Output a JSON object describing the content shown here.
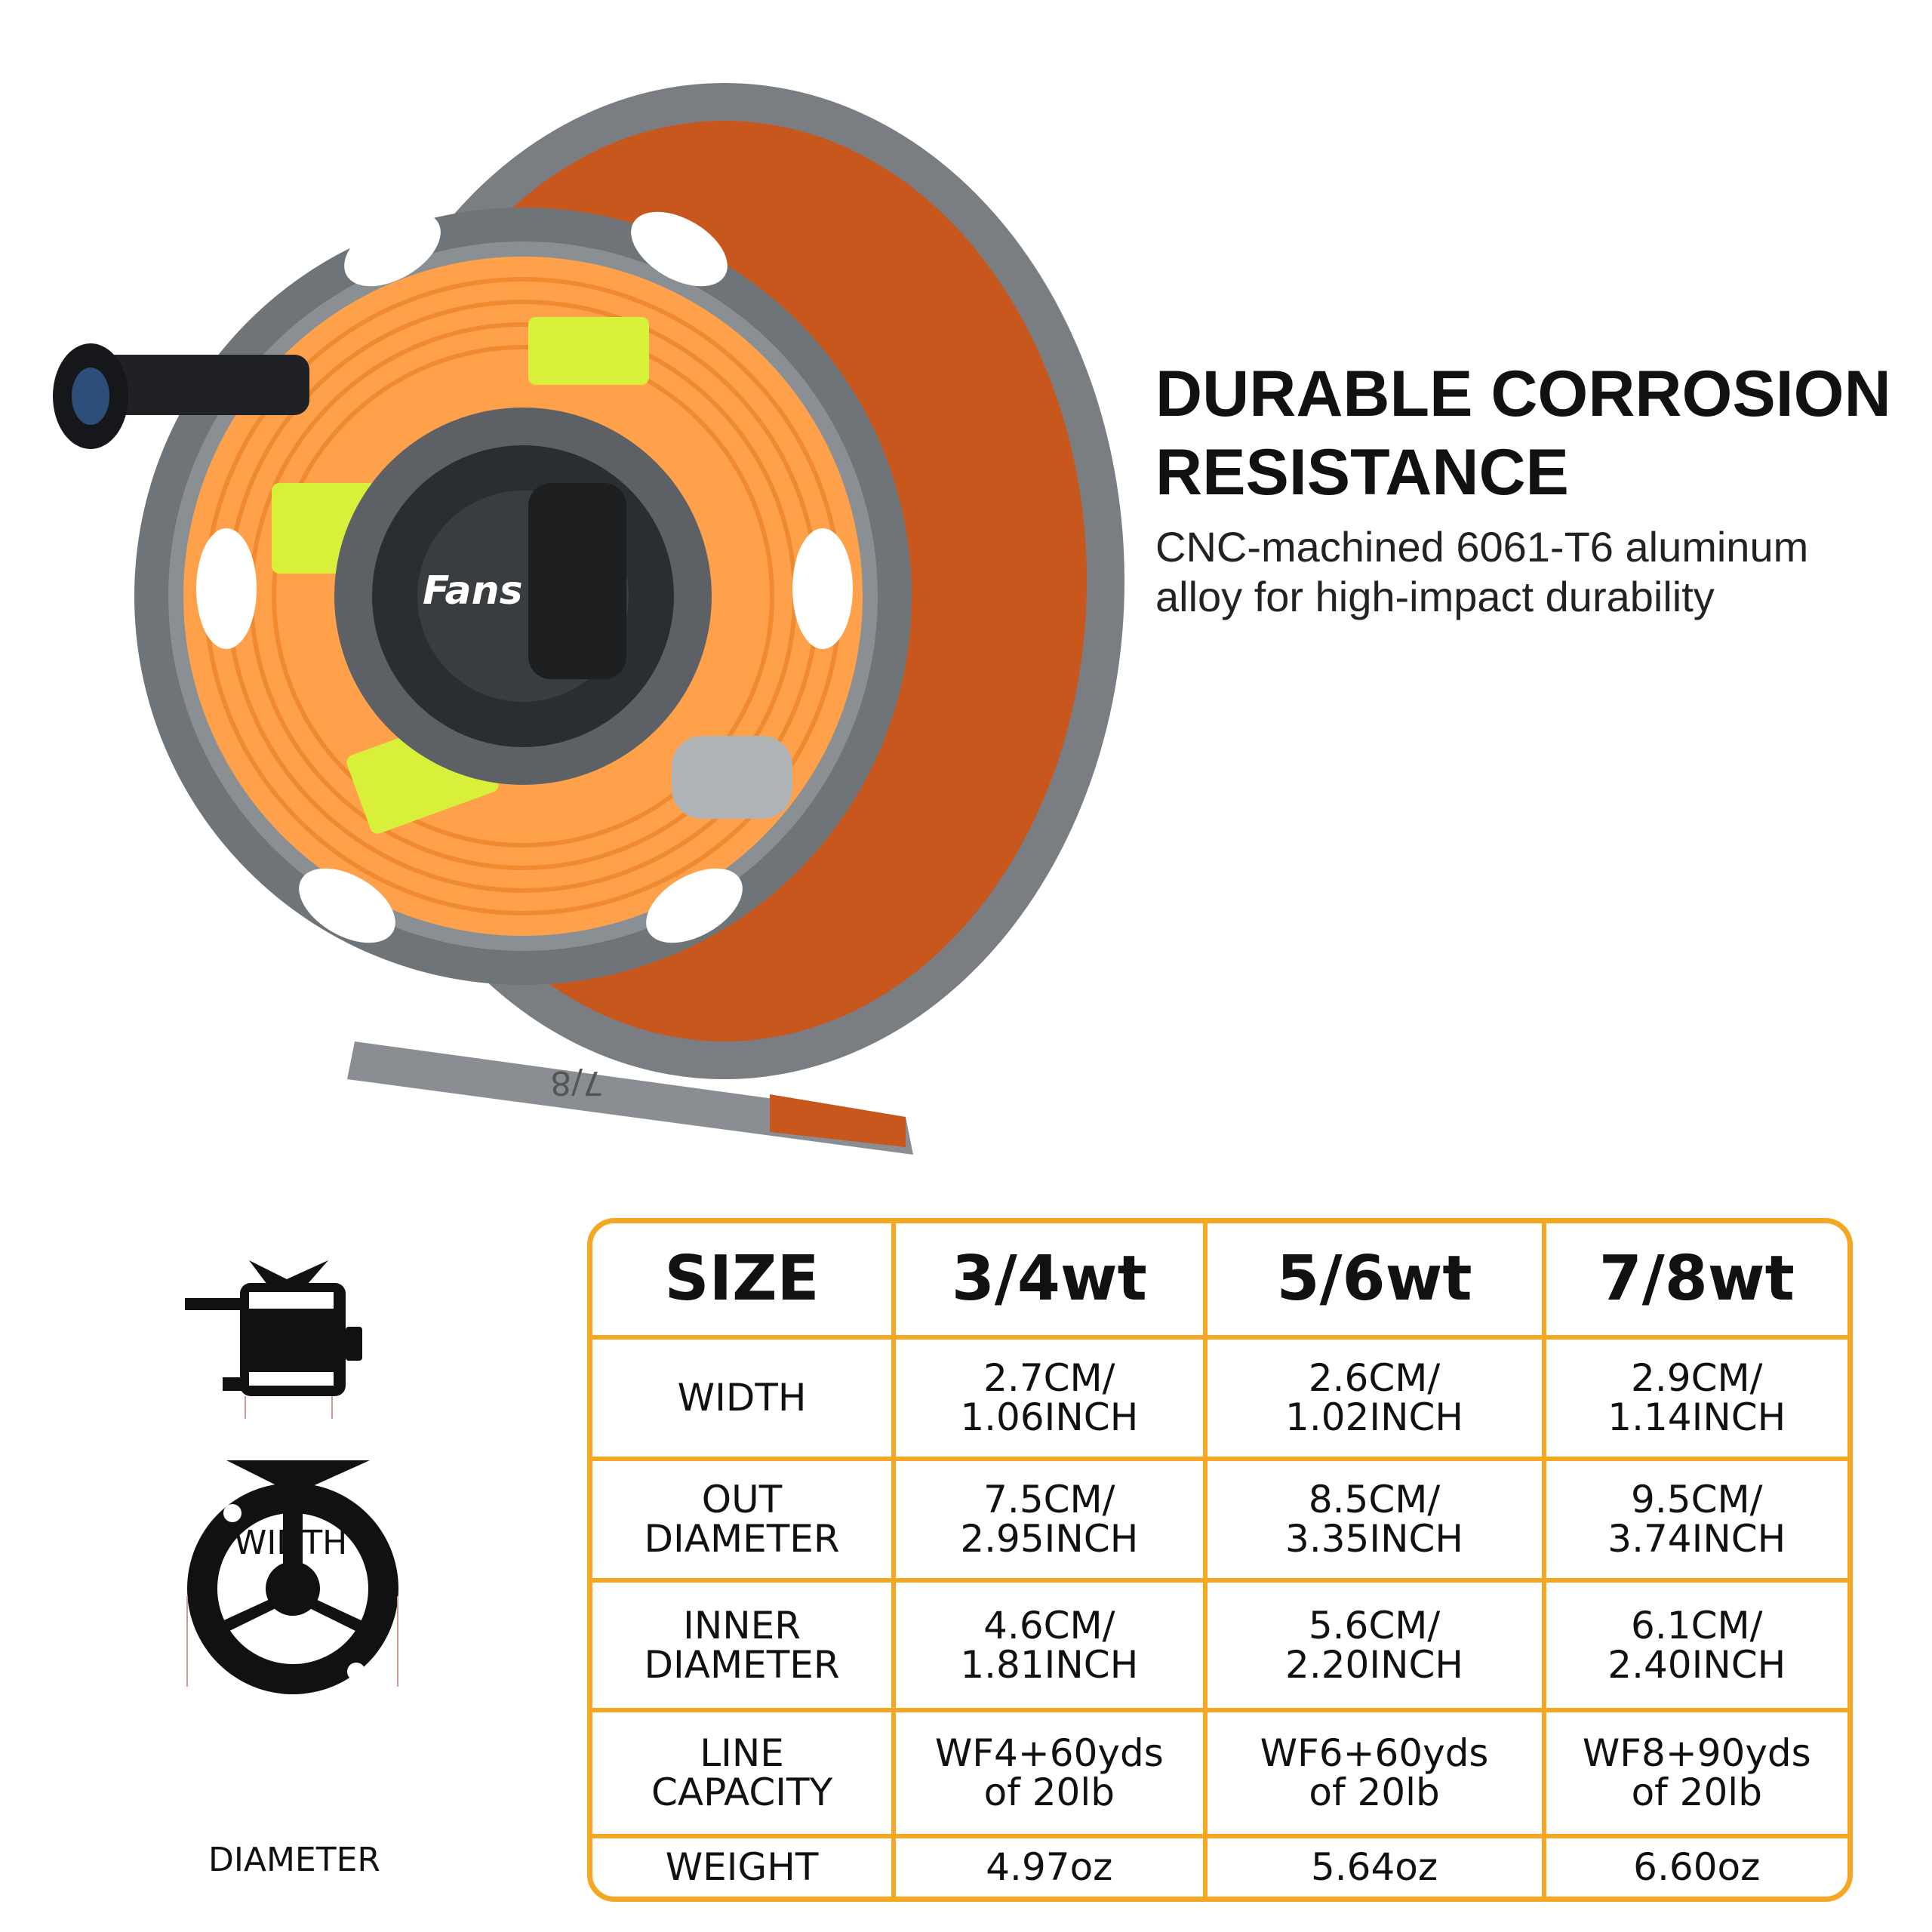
{
  "product": {
    "brand_logo": "Fans",
    "size_marking": "7/8",
    "colors": {
      "frame": "#6f7479",
      "line": "#ffa04a",
      "backing": "#d8f03a",
      "accent": "#f5a623"
    }
  },
  "feature": {
    "headline_line1": "DURABLE CORROSION",
    "headline_line2": "RESISTANCE",
    "description_line1": "CNC-machined 6061-T6 aluminum",
    "description_line2": "alloy for high-impact durability"
  },
  "diagram": {
    "width_label": "WIDTH",
    "diameter_label": "DIAMETER"
  },
  "spec_table": {
    "headers": [
      "SIZE",
      "3/4wt",
      "5/6wt",
      "7/8wt"
    ],
    "rows": [
      {
        "label": "WIDTH",
        "values": [
          "2.7CM/\n1.06INCH",
          "2.6CM/\n1.02INCH",
          "2.9CM/\n1.14INCH"
        ]
      },
      {
        "label": "OUT\nDIAMETER",
        "values": [
          "7.5CM/\n2.95INCH",
          "8.5CM/\n3.35INCH",
          "9.5CM/\n3.74INCH"
        ]
      },
      {
        "label": "INNER\nDIAMETER",
        "values": [
          "4.6CM/\n1.81INCH",
          "5.6CM/\n2.20INCH",
          "6.1CM/\n2.40INCH"
        ]
      },
      {
        "label": "LINE\nCAPACITY",
        "values": [
          "WF4+60yds\nof 20lb",
          "WF6+60yds\nof 20lb",
          "WF8+90yds\nof 20lb"
        ]
      },
      {
        "label": "WEIGHT",
        "values": [
          "4.97oz",
          "5.64oz",
          "6.60oz"
        ]
      }
    ]
  }
}
